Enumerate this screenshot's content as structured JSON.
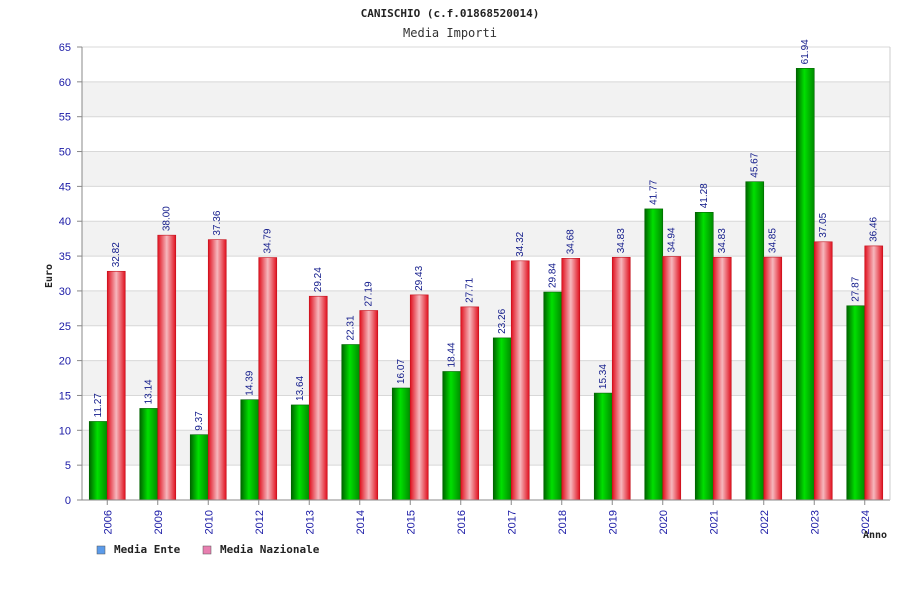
{
  "chart_data": {
    "type": "bar",
    "title": "CANISCHIO (c.f.01868520014)",
    "subtitle": "Media Importi",
    "xlabel": "Anno",
    "ylabel": "Euro",
    "ylim": [
      0,
      65
    ],
    "yticks": [
      0,
      5,
      10,
      15,
      20,
      25,
      30,
      35,
      40,
      45,
      50,
      55,
      60,
      65
    ],
    "grid": true,
    "legend_position": "bottom-left",
    "categories": [
      "2006",
      "2009",
      "2010",
      "2012",
      "2013",
      "2014",
      "2015",
      "2016",
      "2017",
      "2018",
      "2019",
      "2020",
      "2021",
      "2022",
      "2023",
      "2024"
    ],
    "series": [
      {
        "name": "Media Ente",
        "color": "#00b000",
        "legend_color": "#5b9bea",
        "values": [
          11.27,
          13.14,
          9.37,
          14.39,
          13.64,
          22.31,
          16.07,
          18.44,
          23.26,
          29.84,
          15.34,
          41.77,
          41.28,
          45.67,
          61.94,
          27.87
        ],
        "labels": [
          "11.27",
          "13.14",
          "9.37",
          "14.39",
          "13.64",
          "22.31",
          "16.07",
          "18.44",
          "23.26",
          "29.84",
          "15.34",
          "41.77",
          "41.28",
          "45.67",
          "61.94",
          "27.87"
        ]
      },
      {
        "name": "Media Nazionale",
        "color": "#e8202a",
        "legend_color": "#e87fb0",
        "values": [
          32.82,
          38.0,
          37.36,
          34.79,
          29.24,
          27.19,
          29.43,
          27.71,
          34.32,
          34.68,
          34.83,
          34.94,
          34.83,
          34.85,
          37.05,
          36.46
        ],
        "labels": [
          "32.82",
          "38.00",
          "37.36",
          "34.79",
          "29.24",
          "27.19",
          "29.43",
          "27.71",
          "34.32",
          "34.68",
          "34.83",
          "34.94",
          "34.83",
          "34.85",
          "37.05",
          "36.46"
        ]
      }
    ]
  }
}
